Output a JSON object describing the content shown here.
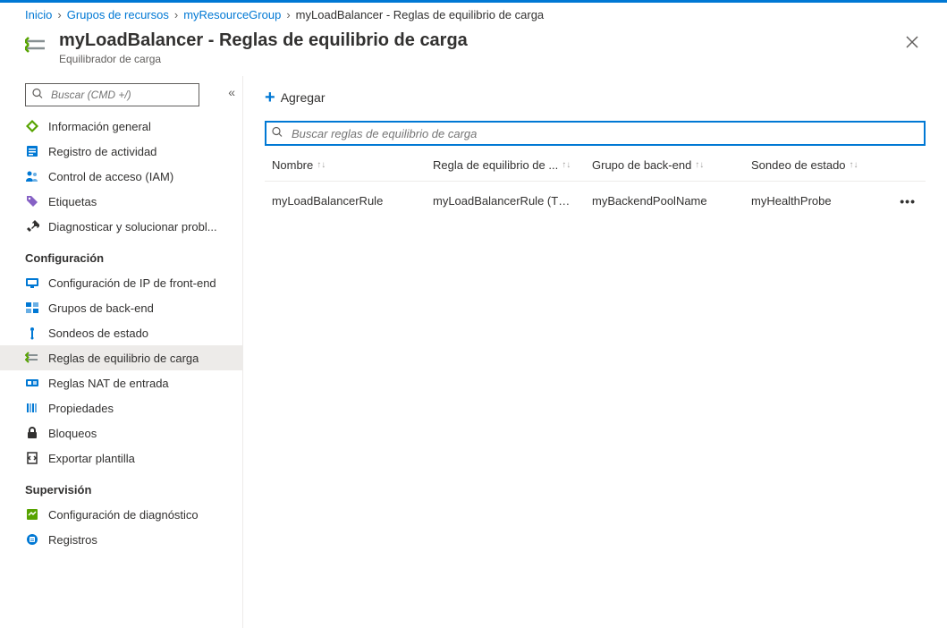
{
  "breadcrumb": {
    "items": [
      {
        "label": "Inicio",
        "link": true
      },
      {
        "label": "Grupos de recursos",
        "link": true
      },
      {
        "label": "myResourceGroup",
        "link": true
      },
      {
        "label": "myLoadBalancer - Reglas de equilibrio de carga",
        "link": false
      }
    ]
  },
  "header": {
    "title": "myLoadBalancer - Reglas de equilibrio de carga",
    "subtitle": "Equilibrador de carga"
  },
  "sidebar": {
    "search_placeholder": "Buscar (CMD +/)",
    "groups": [
      {
        "section": null,
        "items": [
          {
            "label": "Información general",
            "icon": "overview",
            "color": "#57a300"
          },
          {
            "label": "Registro de actividad",
            "icon": "activity-log",
            "color": "#0078d4"
          },
          {
            "label": "Control de acceso (IAM)",
            "icon": "access-control",
            "color": "#0078d4"
          },
          {
            "label": "Etiquetas",
            "icon": "tags",
            "color": "#8661c5"
          },
          {
            "label": "Diagnosticar y solucionar probl...",
            "icon": "diagnose",
            "color": "#323130"
          }
        ]
      },
      {
        "section": "Configuración",
        "items": [
          {
            "label": "Configuración de IP de front-end",
            "icon": "frontend-ip",
            "color": "#0078d4"
          },
          {
            "label": "Grupos de back-end",
            "icon": "backend-pools",
            "color": "#0078d4"
          },
          {
            "label": "Sondeos de estado",
            "icon": "health-probes",
            "color": "#0078d4"
          },
          {
            "label": "Reglas de equilibrio de carga",
            "icon": "lb-rules",
            "color": "#879092",
            "active": true
          },
          {
            "label": "Reglas NAT de entrada",
            "icon": "nat-rules",
            "color": "#0078d4"
          },
          {
            "label": "Propiedades",
            "icon": "properties",
            "color": "#0078d4"
          },
          {
            "label": "Bloqueos",
            "icon": "locks",
            "color": "#323130"
          },
          {
            "label": "Exportar plantilla",
            "icon": "export-template",
            "color": "#323130"
          }
        ]
      },
      {
        "section": "Supervisión",
        "items": [
          {
            "label": "Configuración de diagnóstico",
            "icon": "diagnostic-settings",
            "color": "#57a300"
          },
          {
            "label": "Registros",
            "icon": "logs",
            "color": "#0078d4"
          }
        ]
      }
    ]
  },
  "main": {
    "toolbar": {
      "add_label": "Agregar"
    },
    "search_placeholder": "Buscar reglas de equilibrio de carga",
    "table": {
      "columns": [
        {
          "label": "Nombre"
        },
        {
          "label": "Regla de equilibrio de ..."
        },
        {
          "label": "Grupo de back-end"
        },
        {
          "label": "Sondeo de estado"
        }
      ],
      "rows": [
        {
          "name": "myLoadBalancerRule",
          "rule": "myLoadBalancerRule (TCP...",
          "backend": "myBackendPoolName",
          "probe": "myHealthProbe"
        }
      ]
    }
  },
  "colors": {
    "accent": "#0078d4",
    "text": "#323130",
    "muted": "#605e5c",
    "border": "#edebe9",
    "active_bg": "#edebe9"
  }
}
